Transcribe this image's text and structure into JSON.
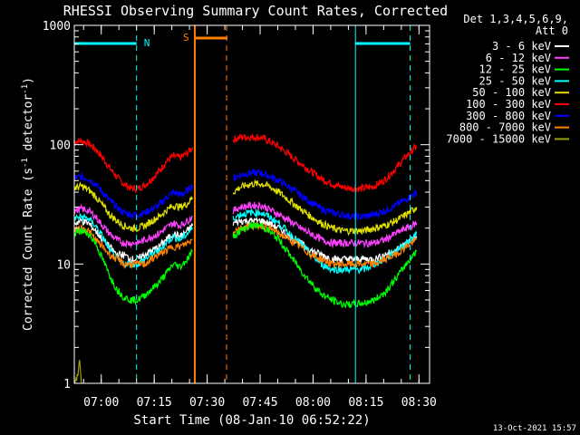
{
  "chart_data": {
    "type": "line",
    "title": "RHESSI Observing Summary Count Rates, Corrected",
    "xlabel": "Start Time (08-Jan-10 06:52:22)",
    "ylabel_main": "Corrected Count Rate (s",
    "ylabel_sup1": "-1",
    "ylabel_mid": " detector",
    "ylabel_sup2": "-1",
    "ylabel_end": ")",
    "timestamp": "13-Oct-2021 15:57",
    "yscale": "log",
    "ylim": [
      1,
      1000
    ],
    "xlim": [
      "06:52:22",
      "08:33:00"
    ],
    "yticks": [
      {
        "v": 1,
        "label": "1"
      },
      {
        "v": 10,
        "label": "10"
      },
      {
        "v": 100,
        "label": "100"
      },
      {
        "v": 1000,
        "label": "1000"
      }
    ],
    "xticks": [
      "07:00",
      "07:15",
      "07:30",
      "07:45",
      "08:00",
      "08:15",
      "08:30"
    ],
    "legend": {
      "header1": "Det 1,3,4,5,6,9,",
      "header2": "Att 0",
      "entries": [
        {
          "label": "3 - 6 keV",
          "color": "#ffffff"
        },
        {
          "label": "6 - 12 keV",
          "color": "#ff40ff"
        },
        {
          "label": "12 - 25 keV",
          "color": "#00ff00"
        },
        {
          "label": "25 - 50 keV",
          "color": "#00ffff"
        },
        {
          "label": "50 - 100 keV",
          "color": "#e0e000"
        },
        {
          "label": "100 - 300 keV",
          "color": "#ff0000"
        },
        {
          "label": "300 - 800 keV",
          "color": "#0000ff"
        },
        {
          "label": "800 - 7000 keV",
          "color": "#ff8000"
        },
        {
          "label": "7000 - 15000 keV",
          "color": "#a0a000"
        }
      ]
    },
    "markers": {
      "night_label": "N",
      "saa_label": "S",
      "night_color": "#00ffff",
      "saa_color": "#ff8000",
      "night_intervals": [
        [
          "06:52:22",
          "07:10:00"
        ],
        [
          "08:12:00",
          "08:27:30"
        ]
      ],
      "saa_interval": [
        "07:26:30",
        "07:35:30"
      ]
    },
    "x_units": "minutes after 06:52:22",
    "series": [
      {
        "name": "100 - 300 keV",
        "color": "#ff0000",
        "x": [
          0,
          2,
          4,
          6,
          8,
          10,
          12,
          14,
          16,
          18,
          20,
          22,
          24,
          26,
          28,
          30,
          32,
          33.5,
          45,
          47,
          50,
          53,
          55,
          58,
          61,
          64,
          67,
          70,
          73,
          76,
          79,
          82,
          85,
          88,
          91,
          94,
          97
        ],
        "values": [
          106,
          108,
          103,
          92,
          78,
          64,
          54,
          47,
          43,
          43,
          46,
          52,
          60,
          72,
          80,
          78,
          85,
          95,
          110,
          116,
          116,
          115,
          108,
          96,
          82,
          70,
          60,
          52,
          47,
          44,
          43,
          43,
          45,
          51,
          63,
          80,
          98
        ]
      },
      {
        "name": "300 - 800 keV",
        "color": "#0000ff",
        "x": [
          0,
          2,
          4,
          6,
          8,
          10,
          12,
          14,
          16,
          18,
          20,
          22,
          24,
          26,
          28,
          30,
          32,
          33.5,
          45,
          47,
          50,
          53,
          55,
          58,
          61,
          64,
          67,
          70,
          73,
          76,
          79,
          82,
          85,
          88,
          91,
          94,
          97
        ],
        "values": [
          52,
          54,
          52,
          47,
          40,
          34,
          30,
          27,
          26,
          26,
          27,
          29,
          31,
          36,
          40,
          38,
          41,
          46,
          52,
          56,
          58,
          58,
          55,
          50,
          44,
          38,
          33,
          29,
          27,
          26,
          25,
          25,
          26,
          28,
          31,
          35,
          40
        ]
      },
      {
        "name": "50 - 100 keV",
        "color": "#e0e000",
        "x": [
          0,
          2,
          4,
          6,
          8,
          10,
          12,
          14,
          16,
          18,
          20,
          22,
          24,
          26,
          28,
          30,
          32,
          33.5,
          45,
          47,
          50,
          53,
          55,
          58,
          61,
          64,
          67,
          70,
          73,
          76,
          79,
          82,
          85,
          88,
          91,
          94,
          97
        ],
        "values": [
          43,
          45,
          42,
          37,
          31,
          26,
          23,
          21,
          20,
          20,
          21,
          23,
          25,
          28,
          31,
          30,
          32,
          36,
          40,
          44,
          47,
          47,
          45,
          40,
          34,
          29,
          25,
          22,
          20,
          19,
          19,
          19,
          20,
          21,
          23,
          26,
          30
        ]
      },
      {
        "name": "6 - 12 keV",
        "color": "#ff40ff",
        "x": [
          0,
          2,
          4,
          6,
          8,
          10,
          12,
          14,
          16,
          18,
          20,
          22,
          24,
          26,
          28,
          30,
          32,
          33.5,
          45,
          47,
          50,
          53,
          55,
          58,
          61,
          64,
          67,
          70,
          73,
          76,
          79,
          82,
          85,
          88,
          91,
          94,
          97
        ],
        "values": [
          28,
          29,
          28,
          25,
          21,
          18,
          16,
          15,
          15,
          15,
          16,
          17,
          18,
          20,
          22,
          21,
          23,
          25,
          28,
          30,
          31,
          31,
          29,
          26,
          23,
          20,
          18,
          16,
          15,
          15,
          15,
          15,
          15,
          16,
          18,
          20,
          22
        ]
      },
      {
        "name": "3 - 6 keV",
        "color": "#ffffff",
        "x": [
          0,
          2,
          4,
          6,
          8,
          10,
          12,
          14,
          16,
          18,
          20,
          22,
          24,
          26,
          28,
          30,
          32,
          33.5,
          45,
          47,
          50,
          53,
          55,
          58,
          61,
          64,
          67,
          70,
          73,
          76,
          79,
          82,
          85,
          88,
          91,
          94,
          97
        ],
        "values": [
          22,
          23,
          22,
          19,
          16,
          14,
          12,
          12,
          11,
          11,
          12,
          13,
          14,
          16,
          18,
          17,
          19,
          21,
          22,
          23,
          23,
          23,
          22,
          20,
          17,
          15,
          13,
          12,
          11,
          11,
          11,
          11,
          11,
          12,
          13,
          15,
          17
        ]
      },
      {
        "name": "25 - 50 keV",
        "color": "#00ffff",
        "x": [
          0,
          2,
          4,
          6,
          8,
          10,
          12,
          14,
          16,
          18,
          20,
          22,
          24,
          26,
          28,
          30,
          32,
          33.5,
          45,
          47,
          50,
          53,
          55,
          58,
          61,
          64,
          67,
          70,
          73,
          76,
          79,
          82,
          85,
          88,
          91,
          94,
          97
        ],
        "values": [
          24,
          25,
          24,
          21,
          17,
          13,
          11,
          10,
          10,
          10,
          11,
          12,
          13,
          15,
          17,
          16,
          18,
          20,
          24,
          26,
          27,
          27,
          25,
          22,
          18,
          15,
          12,
          10,
          9,
          9,
          9,
          9,
          10,
          11,
          13,
          15,
          18
        ]
      },
      {
        "name": "800 - 7000 keV",
        "color": "#ff8000",
        "x": [
          0,
          2,
          4,
          6,
          8,
          10,
          12,
          14,
          16,
          18,
          20,
          22,
          24,
          26,
          28,
          30,
          32,
          33.5,
          45,
          47,
          50,
          53,
          55,
          58,
          61,
          64,
          67,
          70,
          73,
          76,
          79,
          82,
          85,
          88,
          91,
          94,
          97
        ],
        "values": [
          19,
          20,
          19,
          16,
          14,
          12,
          11,
          10,
          10,
          10,
          10,
          11,
          12,
          13,
          14,
          14,
          15,
          16,
          19,
          20,
          21,
          21,
          20,
          18,
          16,
          14,
          12,
          11,
          10,
          10,
          10,
          10,
          10,
          11,
          12,
          14,
          16
        ]
      },
      {
        "name": "12 - 25 keV",
        "color": "#00ff00",
        "x": [
          0,
          2,
          4,
          6,
          8,
          10,
          12,
          14,
          16,
          18,
          20,
          22,
          24,
          26,
          28,
          30,
          32,
          33.5,
          45,
          47,
          50,
          53,
          55,
          58,
          61,
          64,
          67,
          70,
          73,
          76,
          79,
          82,
          85,
          88,
          91,
          94,
          97
        ],
        "values": [
          18,
          19,
          18,
          15,
          11,
          8,
          6.2,
          5.3,
          5.0,
          5.0,
          5.5,
          6.2,
          7.0,
          8.3,
          10,
          9.5,
          11,
          13,
          17,
          19,
          21,
          21,
          19,
          16,
          12,
          9,
          7,
          5.6,
          5.0,
          4.6,
          4.6,
          4.7,
          5.0,
          5.8,
          7.5,
          10,
          13
        ]
      },
      {
        "name": "7000 - 15000 keV",
        "color": "#a0a000",
        "x": [
          0,
          1,
          1.5,
          2
        ],
        "values": [
          1.0,
          1.2,
          1.6,
          1.0
        ]
      }
    ]
  }
}
